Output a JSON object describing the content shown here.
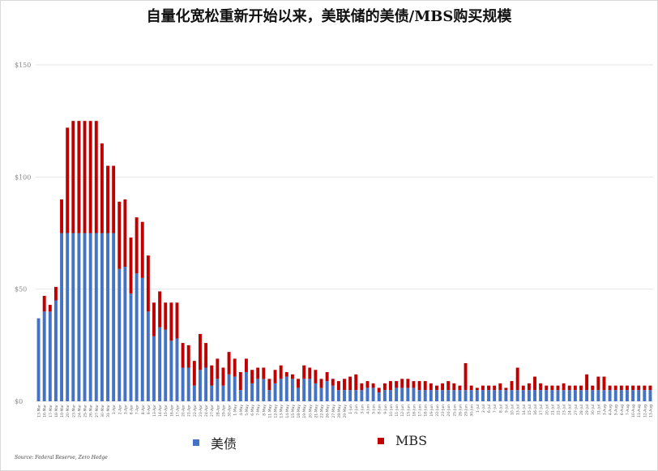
{
  "title": "自量化宽松重新开始以来，美联储的美债/MBS购买规模",
  "source": "Source: Federal Reserve, Zero Hedge",
  "colors": {
    "treasury": "#4472c4",
    "mbs": "#c00000",
    "grid": "#e6e6e6",
    "axis_text": "#888888"
  },
  "chart_data": {
    "type": "bar",
    "stacked": true,
    "grid": true,
    "legend_position": "bottom",
    "ylim": [
      0,
      150
    ],
    "yticks": [
      0,
      50,
      100,
      150
    ],
    "ytick_labels": [
      "$0",
      "$50",
      "$100",
      "$150"
    ],
    "categories": [
      "13-Mar",
      "16-Mar",
      "17-Mar",
      "18-Mar",
      "19-Mar",
      "20-Mar",
      "23-Mar",
      "24-Mar",
      "25-Mar",
      "26-Mar",
      "27-Mar",
      "30-Mar",
      "31-Mar",
      "1-Apr",
      "2-Apr",
      "3-Apr",
      "6-Apr",
      "7-Apr",
      "8-Apr",
      "9-Apr",
      "13-Apr",
      "14-Apr",
      "15-Apr",
      "16-Apr",
      "17-Apr",
      "20-Apr",
      "21-Apr",
      "22-Apr",
      "23-Apr",
      "24-Apr",
      "27-Apr",
      "28-Apr",
      "29-Apr",
      "30-Apr",
      "1-May",
      "4-May",
      "5-May",
      "6-May",
      "7-May",
      "8-May",
      "11-May",
      "12-May",
      "13-May",
      "14-May",
      "15-May",
      "18-May",
      "19-May",
      "20-May",
      "21-May",
      "22-May",
      "26-May",
      "27-May",
      "28-May",
      "29-May",
      "1-Jun",
      "2-Jun",
      "3-Jun",
      "4-Jun",
      "5-Jun",
      "8-Jun",
      "9-Jun",
      "10-Jun",
      "11-Jun",
      "12-Jun",
      "15-Jun",
      "16-Jun",
      "17-Jun",
      "18-Jun",
      "19-Jun",
      "22-Jun",
      "23-Jun",
      "24-Jun",
      "25-Jun",
      "26-Jun",
      "29-Jun",
      "30-Jun",
      "1-Jul",
      "2-Jul",
      "6-Jul",
      "7-Jul",
      "8-Jul",
      "9-Jul",
      "10-Jul",
      "13-Jul",
      "14-Jul",
      "15-Jul",
      "16-Jul",
      "17-Jul",
      "20-Jul",
      "21-Jul",
      "22-Jul",
      "23-Jul",
      "24-Jul",
      "27-Jul",
      "28-Jul",
      "29-Jul",
      "30-Jul",
      "31-Jul",
      "3-Aug",
      "4-Aug",
      "5-Aug",
      "6-Aug",
      "7-Aug",
      "10-Aug",
      "11-Aug",
      "12-Aug",
      "13-Aug"
    ],
    "series": [
      {
        "name": "美债",
        "values": [
          37,
          40,
          40,
          45,
          75,
          75,
          75,
          75,
          75,
          75,
          75,
          75,
          75,
          75,
          59,
          60,
          48,
          57,
          55,
          40,
          29,
          33,
          32,
          27,
          28,
          15,
          15,
          7,
          14,
          15,
          7,
          10,
          7,
          12,
          11,
          5,
          13,
          8,
          10,
          10,
          5,
          8,
          10,
          11,
          10,
          6,
          10,
          10,
          8,
          6,
          9,
          7,
          5,
          5,
          5,
          5,
          5,
          6,
          6,
          4,
          5,
          5,
          6,
          6,
          6,
          6,
          5,
          5,
          5,
          5,
          5,
          5,
          5,
          5,
          5,
          5,
          5,
          5,
          5,
          5,
          5,
          5,
          5,
          5,
          5,
          5,
          5,
          5,
          5,
          5,
          5,
          5,
          5,
          5,
          5,
          5,
          5,
          5,
          5,
          5,
          5,
          5,
          5,
          5,
          5,
          5,
          5
        ]
      },
      {
        "name": "MBS",
        "values": [
          0,
          7,
          3,
          6,
          15,
          47,
          50,
          50,
          50,
          50,
          50,
          40,
          30,
          30,
          30,
          30,
          25,
          25,
          25,
          25,
          15,
          16,
          12,
          17,
          16,
          11,
          10,
          11,
          16,
          11,
          9,
          9,
          8,
          10,
          8,
          8,
          6,
          6,
          5,
          5,
          5,
          6,
          6,
          2,
          2,
          4,
          6,
          5,
          6,
          4,
          4,
          3,
          4,
          5,
          6,
          7,
          3,
          3,
          2,
          2,
          3,
          4,
          3,
          4,
          4,
          3,
          4,
          4,
          3,
          2,
          3,
          4,
          3,
          2,
          12,
          2,
          1,
          2,
          2,
          2,
          3,
          1,
          4,
          10,
          2,
          3,
          6,
          3,
          2,
          2,
          2,
          3,
          2,
          2,
          2,
          7,
          2,
          6,
          6,
          2,
          2,
          2,
          2,
          2,
          2,
          2,
          2
        ]
      }
    ]
  }
}
